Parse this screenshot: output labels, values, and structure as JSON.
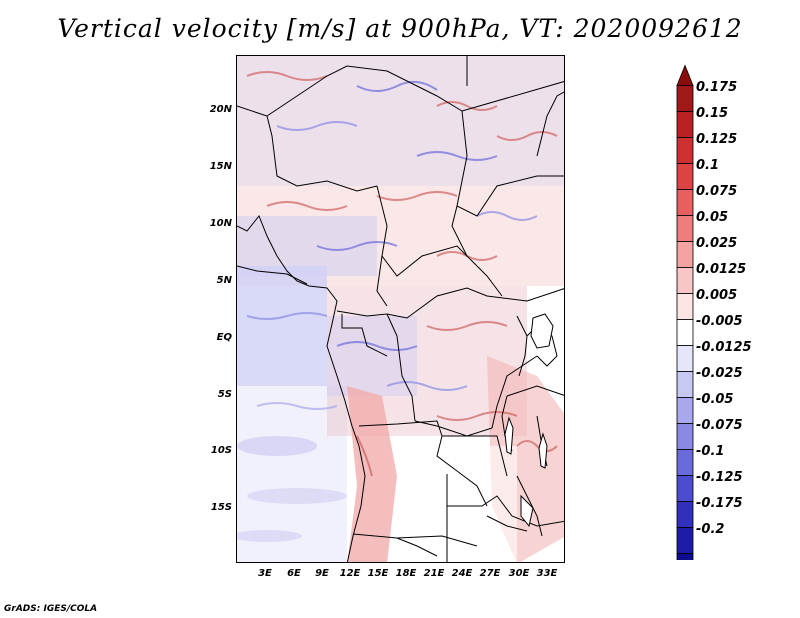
{
  "title": "Vertical velocity [m/s] at 900hPa, VT: 2020092612",
  "credit": "GrADS: IGES/COLA",
  "map": {
    "lat_labels": [
      "20N",
      "15N",
      "10N",
      "5N",
      "EQ",
      "5S",
      "10S",
      "15S"
    ],
    "lon_labels": [
      "3E",
      "6E",
      "9E",
      "12E",
      "15E",
      "18E",
      "21E",
      "24E",
      "27E",
      "30E",
      "33E"
    ]
  },
  "colorbar": {
    "labels": [
      "0.175",
      "0.15",
      "0.125",
      "0.1",
      "0.075",
      "0.05",
      "0.025",
      "0.0125",
      "0.005",
      "-0.005",
      "-0.0125",
      "-0.025",
      "-0.05",
      "-0.075",
      "-0.1",
      "-0.125",
      "-0.175",
      "-0.2"
    ],
    "colors": [
      "#a01818",
      "#b82222",
      "#cc3030",
      "#dc4444",
      "#e66060",
      "#ee7e7e",
      "#f4a2a2",
      "#f8c6c6",
      "#fce4e4",
      "#ffffff",
      "#e6e6fa",
      "#c8c8f4",
      "#a8a8ee",
      "#8a8ae4",
      "#6a6ada",
      "#4c4cce",
      "#3030bc",
      "#1c1ca6",
      "#0c0c8c"
    ]
  }
}
